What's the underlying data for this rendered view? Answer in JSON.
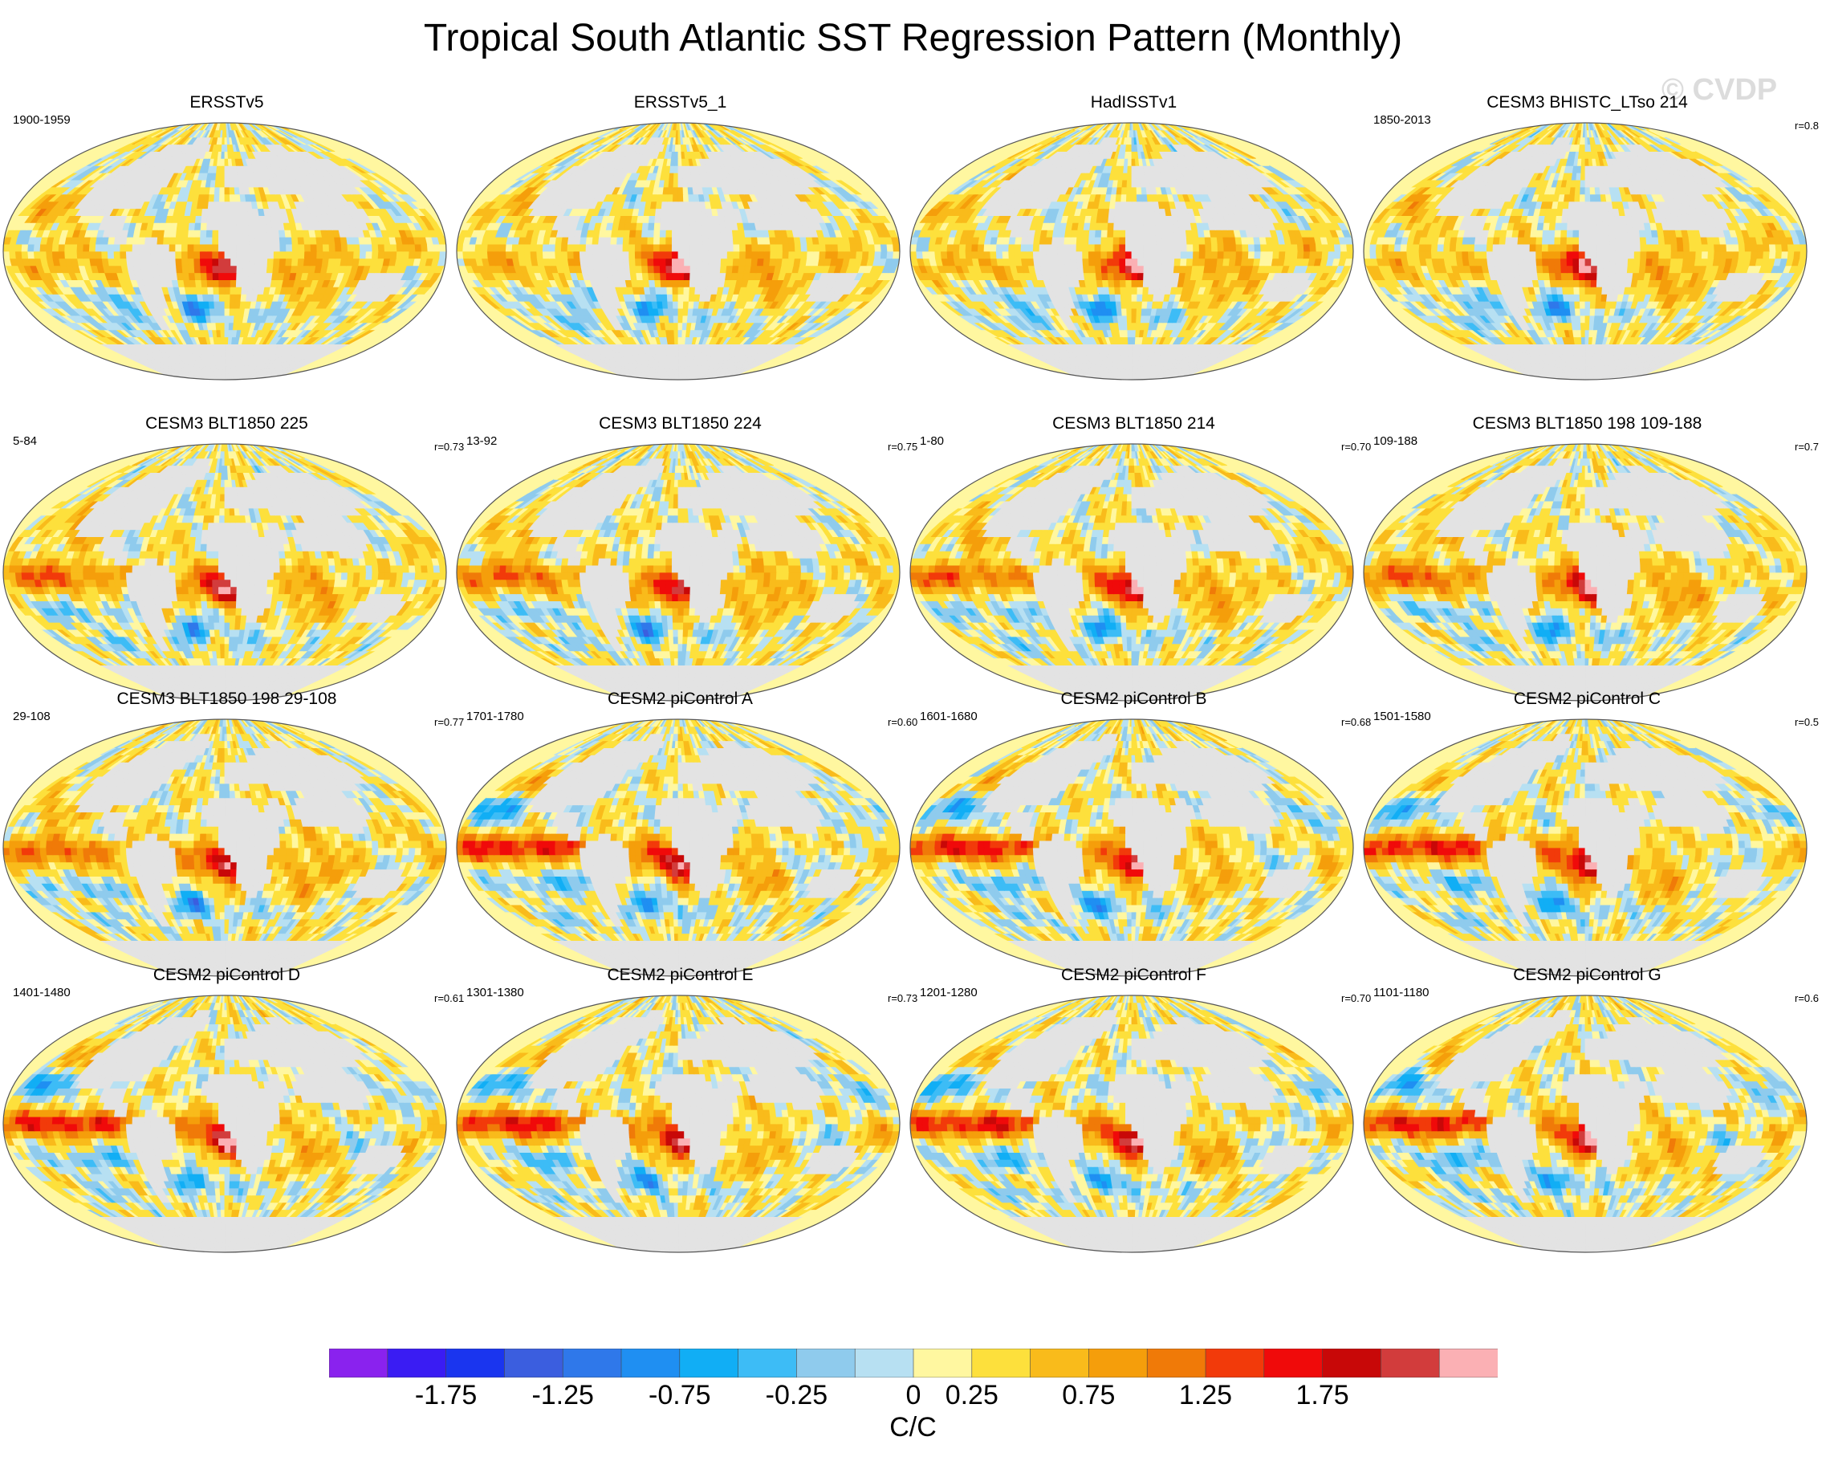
{
  "title": "Tropical South Atlantic SST Regression Pattern (Monthly)",
  "watermark": "© CVDP",
  "chart_data": {
    "type": "heatmap",
    "projection": "Robinson (global map panels)",
    "title": "Tropical South Atlantic SST Regression Pattern (Monthly)",
    "units": "C/C",
    "colorbar": {
      "levels": [
        "-1.75",
        "-1.25",
        "-0.75",
        "-0.25",
        "0",
        "0.25",
        "0.75",
        "1.25",
        "1.75"
      ],
      "colors": [
        "#8a22ee",
        "#3a1cf3",
        "#1a35ef",
        "#3b5edf",
        "#2f78ea",
        "#1f8ff2",
        "#11aef5",
        "#3dbcf6",
        "#8fcbed",
        "#b7e0f2",
        "#fff7a0",
        "#fde03c",
        "#f9bb1b",
        "#f59e0b",
        "#f07a08",
        "#f23a0a",
        "#f00a0a",
        "#c80808",
        "#d23c3c",
        "#fbb0b4"
      ]
    },
    "panels": [
      {
        "title": "ERSSTv5",
        "period": "1900-1959",
        "corr": "",
        "style": "obs",
        "seed": 1
      },
      {
        "title": "ERSSTv5_1",
        "period": "",
        "corr": "",
        "style": "obs",
        "seed": 2
      },
      {
        "title": "HadISSTv1",
        "period": "",
        "corr": "",
        "style": "obs",
        "seed": 3
      },
      {
        "title": "CESM3 BHISTC_LTso 214",
        "period": "1850-2013",
        "corr": "r=0.8",
        "style": "obs",
        "seed": 4
      },
      {
        "title": "CESM3 BLT1850 225",
        "period": "5-84",
        "corr": "r=0.73",
        "style": "model",
        "seed": 5
      },
      {
        "title": "CESM3 BLT1850 224",
        "period": "13-92",
        "corr": "r=0.75",
        "style": "model",
        "seed": 6
      },
      {
        "title": "CESM3 BLT1850 214",
        "period": "1-80",
        "corr": "r=0.70",
        "style": "model",
        "seed": 7
      },
      {
        "title": "CESM3 BLT1850 198 109-188",
        "period": "109-188",
        "corr": "r=0.7",
        "style": "model",
        "seed": 8
      },
      {
        "title": "CESM3 BLT1850 198 29-108",
        "period": "29-108",
        "corr": "r=0.77",
        "style": "model",
        "seed": 9
      },
      {
        "title": "CESM2 piControl A",
        "period": "1701-1780",
        "corr": "r=0.60",
        "style": "pic",
        "seed": 10
      },
      {
        "title": "CESM2 piControl B",
        "period": "1601-1680",
        "corr": "r=0.68",
        "style": "pic",
        "seed": 11
      },
      {
        "title": "CESM2 piControl C",
        "period": "1501-1580",
        "corr": "r=0.5",
        "style": "pic",
        "seed": 12
      },
      {
        "title": "CESM2 piControl D",
        "period": "1401-1480",
        "corr": "r=0.61",
        "style": "pic",
        "seed": 13
      },
      {
        "title": "CESM2 piControl E",
        "period": "1301-1380",
        "corr": "r=0.73",
        "style": "pic",
        "seed": 14
      },
      {
        "title": "CESM2 piControl F",
        "period": "1201-1280",
        "corr": "r=0.70",
        "style": "pic",
        "seed": 15
      },
      {
        "title": "CESM2 piControl G",
        "period": "1101-1180",
        "corr": "r=0.6",
        "style": "pic",
        "seed": 16
      }
    ]
  }
}
